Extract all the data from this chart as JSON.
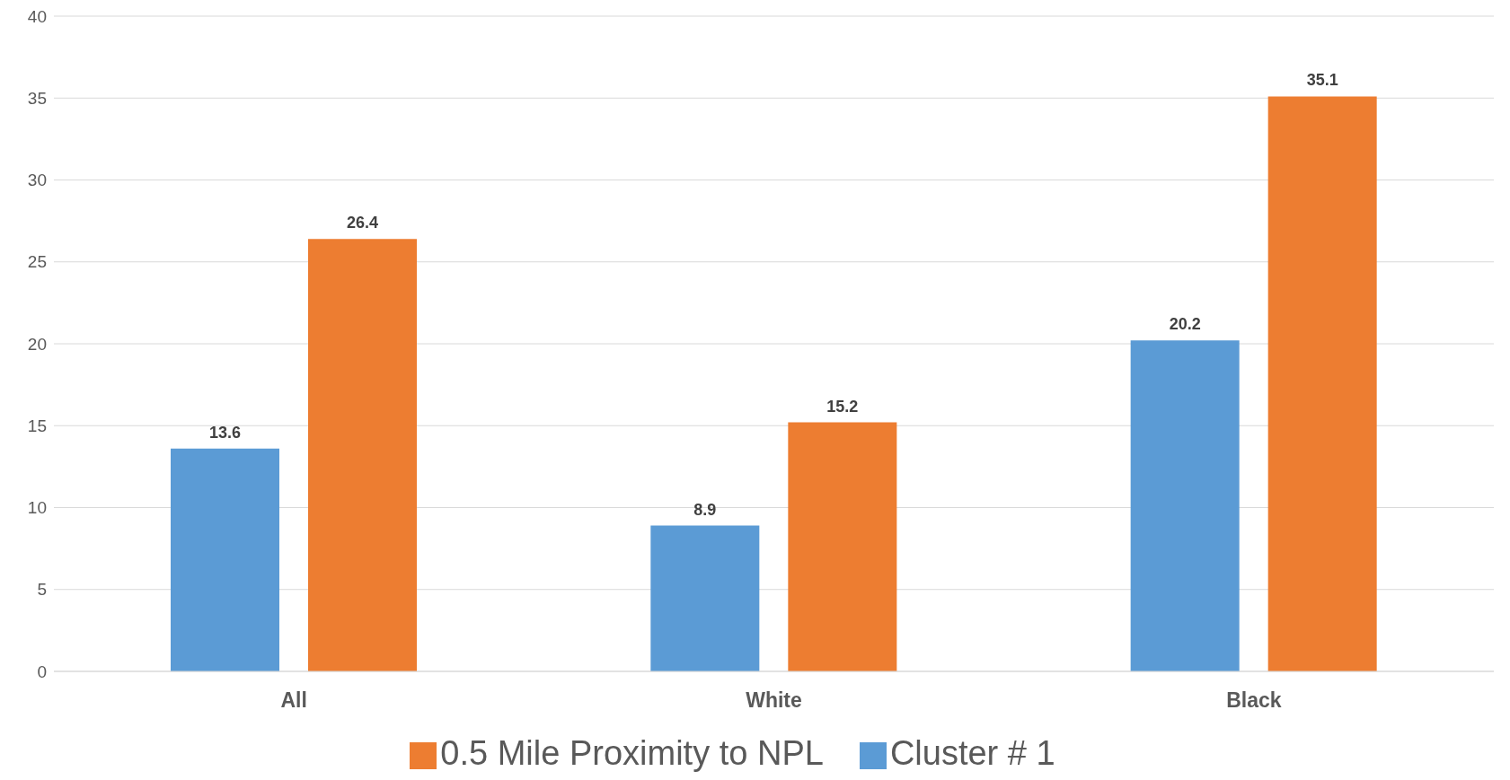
{
  "chart_data": {
    "type": "bar",
    "categories": [
      "All",
      "White",
      "Black"
    ],
    "series": [
      {
        "name": "Cluster # 1",
        "color": "#5b9bd5",
        "values": [
          13.6,
          8.9,
          20.2
        ]
      },
      {
        "name": "0.5 Mile Proximity to NPL",
        "color": "#ed7d31",
        "values": [
          26.4,
          15.2,
          35.1
        ]
      }
    ],
    "ylim": [
      0,
      40
    ],
    "yticks": [
      0,
      5,
      10,
      15,
      20,
      25,
      30,
      35,
      40
    ],
    "grid": "y",
    "legend": "bottom",
    "data_labels": true
  }
}
